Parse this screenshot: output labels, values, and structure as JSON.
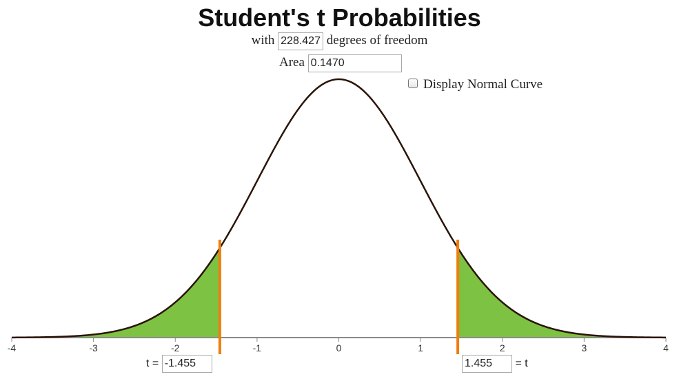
{
  "title": "Student's t Probabilities",
  "degrees": {
    "prefix": "with",
    "value": "228.427",
    "suffix": "degrees of freedom"
  },
  "area": {
    "label": "Area",
    "value": "0.1470"
  },
  "normal_curve": {
    "label": "Display Normal Curve",
    "checked": false
  },
  "t_left": {
    "label": "t =",
    "value": "-1.455"
  },
  "t_right": {
    "value": "1.455",
    "label": "= t"
  },
  "colors": {
    "curve": "#2a1408",
    "shade": "#7dc242",
    "cutoff": "#f07d0c",
    "axis": "#8a8a8a"
  },
  "chart_data": {
    "type": "area",
    "distribution": "student-t",
    "df": 228.427,
    "xlim": [
      -4,
      4
    ],
    "x_ticks": [
      "-4",
      "-3",
      "-2",
      "-1",
      "0",
      "1",
      "2",
      "3",
      "4"
    ],
    "shaded_tails": [
      {
        "from": -4,
        "to": -1.455
      },
      {
        "from": 1.455,
        "to": 4
      }
    ],
    "cutoffs": [
      -1.455,
      1.455
    ],
    "tail_area": 0.147
  }
}
